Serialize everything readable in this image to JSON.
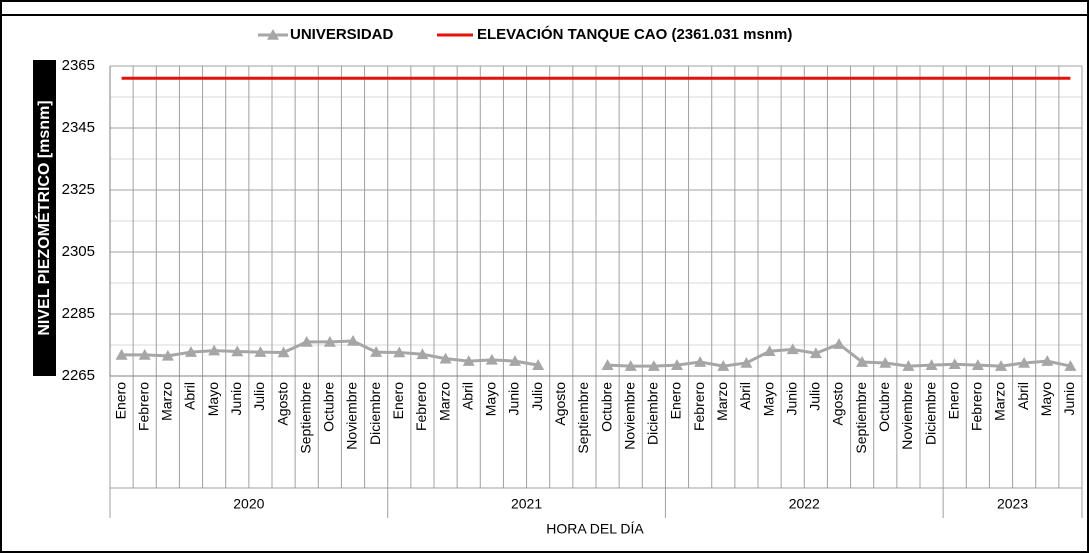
{
  "chart_data": {
    "type": "line",
    "x_label": "HORA DEL DÍA",
    "y_label": "NIVEL PIEZOMÉTRICO [msnm]",
    "groups": [
      {
        "name": "2020",
        "categories": [
          "Enero",
          "Febrero",
          "Marzo",
          "Abril",
          "Mayo",
          "Junio",
          "Julio",
          "Agosto",
          "Septiembre",
          "Octubre",
          "Noviembre",
          "Diciembre"
        ]
      },
      {
        "name": "2021",
        "categories": [
          "Enero",
          "Febrero",
          "Marzo",
          "Abril",
          "Mayo",
          "Junio",
          "Julio",
          "Agosto",
          "Septiembre",
          "Octubre",
          "Noviembre",
          "Diciembre"
        ]
      },
      {
        "name": "2022",
        "categories": [
          "Enero",
          "Febrero",
          "Marzo",
          "Abril",
          "Mayo",
          "Junio",
          "Julio",
          "Agosto",
          "Septiembre",
          "Octubre",
          "Noviembre",
          "Diciembre"
        ]
      },
      {
        "name": "2023",
        "categories": [
          "Enero",
          "Febrero",
          "Marzo",
          "Abril",
          "Mayo",
          "Junio"
        ]
      }
    ],
    "series": [
      {
        "name": "UNIVERSIDAD",
        "color": "#a6a6a6",
        "marker": "triangle",
        "values": [
          2271.8,
          2271.8,
          2271.5,
          2272.7,
          2273.2,
          2272.9,
          2272.7,
          2272.6,
          2276,
          2276,
          2276.3,
          2272.7,
          2272.6,
          2272,
          2270.6,
          2269.8,
          2270.2,
          2269.8,
          2268.5,
          null,
          null,
          2268.5,
          2268.2,
          2268.2,
          2268.5,
          2269.5,
          2268.2,
          2269.2,
          2273,
          2273.6,
          2272.3,
          2275.3,
          2269.5,
          2269.2,
          2268.2,
          2268.5,
          2268.8,
          2268.5,
          2268.2,
          2269.2,
          2269.8,
          2268.2
        ]
      },
      {
        "name": "ELEVACIÓN TANQUE CAO (2361.031 msnm)",
        "color": "#e3120b",
        "values": [
          2361.031,
          2361.031,
          2361.031,
          2361.031,
          2361.031,
          2361.031,
          2361.031,
          2361.031,
          2361.031,
          2361.031,
          2361.031,
          2361.031,
          2361.031,
          2361.031,
          2361.031,
          2361.031,
          2361.031,
          2361.031,
          2361.031,
          2361.031,
          2361.031,
          2361.031,
          2361.031,
          2361.031,
          2361.031,
          2361.031,
          2361.031,
          2361.031,
          2361.031,
          2361.031,
          2361.031,
          2361.031,
          2361.031,
          2361.031,
          2361.031,
          2361.031,
          2361.031,
          2361.031,
          2361.031,
          2361.031,
          2361.031,
          2361.031
        ]
      }
    ],
    "ylim": [
      2265,
      2365
    ],
    "yticks": [
      2265,
      2285,
      2305,
      2325,
      2345,
      2365
    ],
    "yminorticks": [
      2275,
      2295,
      2315,
      2335,
      2355
    ],
    "grid": true,
    "legend": "top"
  }
}
